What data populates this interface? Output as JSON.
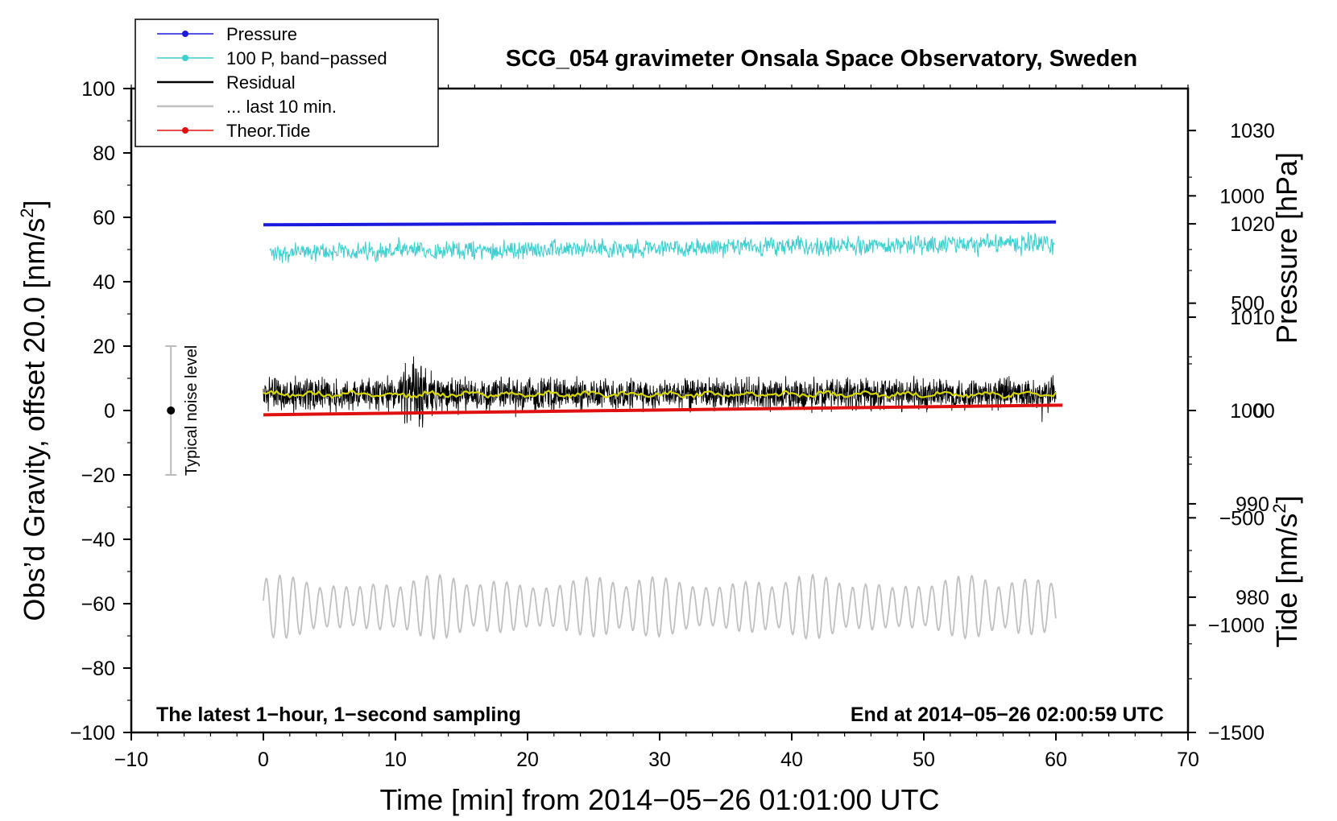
{
  "chart_data": {
    "type": "line",
    "title": "SCG_054 gravimeter Onsala Space Observatory, Sweden",
    "xlabel": "Time [min] from 2014−05−26 01:01:00 UTC",
    "ylabel_left_main": "Obs’d Gravity, offset 20.0 [nm/s",
    "ylabel_left_sup": "2",
    "ylabel_left_close": "]",
    "ylabel_pressure": "Pressure [hPa]",
    "ylabel_tide_main": "Tide [nm/s",
    "ylabel_tide_sup": "2",
    "ylabel_tide_close": "]",
    "xlim": [
      -10,
      70
    ],
    "ylim": [
      -100,
      100
    ],
    "pressure_lim": [
      965.5,
      1034.5
    ],
    "tide_lim": [
      -1500,
      1500
    ],
    "x_ticks": [
      {
        "v": -10,
        "label": "−10"
      },
      {
        "v": 0,
        "label": "0"
      },
      {
        "v": 10,
        "label": "10"
      },
      {
        "v": 20,
        "label": "20"
      },
      {
        "v": 30,
        "label": "30"
      },
      {
        "v": 40,
        "label": "40"
      },
      {
        "v": 50,
        "label": "50"
      },
      {
        "v": 60,
        "label": "60"
      },
      {
        "v": 70,
        "label": "70"
      }
    ],
    "y_ticks": [
      {
        "v": 100,
        "label": "100"
      },
      {
        "v": 80,
        "label": "80"
      },
      {
        "v": 60,
        "label": "60"
      },
      {
        "v": 40,
        "label": "40"
      },
      {
        "v": 20,
        "label": "20"
      },
      {
        "v": 0,
        "label": "0"
      },
      {
        "v": -20,
        "label": "−20"
      },
      {
        "v": -40,
        "label": "−40"
      },
      {
        "v": -60,
        "label": "−60"
      },
      {
        "v": -80,
        "label": "−80"
      },
      {
        "v": -100,
        "label": "−100"
      }
    ],
    "pressure_ticks": [
      {
        "v": 1030,
        "label": "1030"
      },
      {
        "v": 1020,
        "label": "1020"
      },
      {
        "v": 1010,
        "label": "1010"
      },
      {
        "v": 1000,
        "label": "1000"
      },
      {
        "v": 990,
        "label": "990"
      },
      {
        "v": 980,
        "label": "980"
      }
    ],
    "tide_ticks": [
      {
        "v": 1000,
        "label": "1000"
      },
      {
        "v": 500,
        "label": "500"
      },
      {
        "v": 0,
        "label": "0"
      },
      {
        "v": -500,
        "label": "−500"
      },
      {
        "v": -1000,
        "label": "−1000"
      },
      {
        "v": -1500,
        "label": "−1500"
      }
    ],
    "legend_position": "top-left",
    "series": [
      {
        "name": "Pressure",
        "color": "#1a1adc",
        "axis": "pressure",
        "start": 1019.9,
        "end": 1020.2
      },
      {
        "name": "100 P, band−passed",
        "color": "#3fcfcf",
        "axis": "left",
        "center": 50.0,
        "trend": [
          49.0,
          52.0
        ],
        "amplitude": 3.5
      },
      {
        "name": "Residual",
        "color": "#000000",
        "axis": "left",
        "center": 5.0,
        "amplitude": 6.0,
        "burst_at_min": 11.5,
        "burst_peak": 20.0,
        "burst_trough": -8.0
      },
      {
        "name": "... last 10 min.",
        "color": "#c0c0c0",
        "axis": "left",
        "center": -61.0,
        "amplitude": 5.5
      },
      {
        "name": "Theor.Tide",
        "color": "#e01010",
        "axis": "tide",
        "start": -20.0,
        "end": 25.0
      }
    ],
    "residual_smooth": {
      "color": "#d6d600",
      "center": 5.0
    },
    "noise_level": {
      "center": 0,
      "low": -20,
      "high": 20,
      "x": -7,
      "label": "Typical noise level"
    },
    "note_left": "The latest 1−hour, 1−second sampling",
    "note_right": "End at 2014−05−26 02:00:59 UTC"
  }
}
